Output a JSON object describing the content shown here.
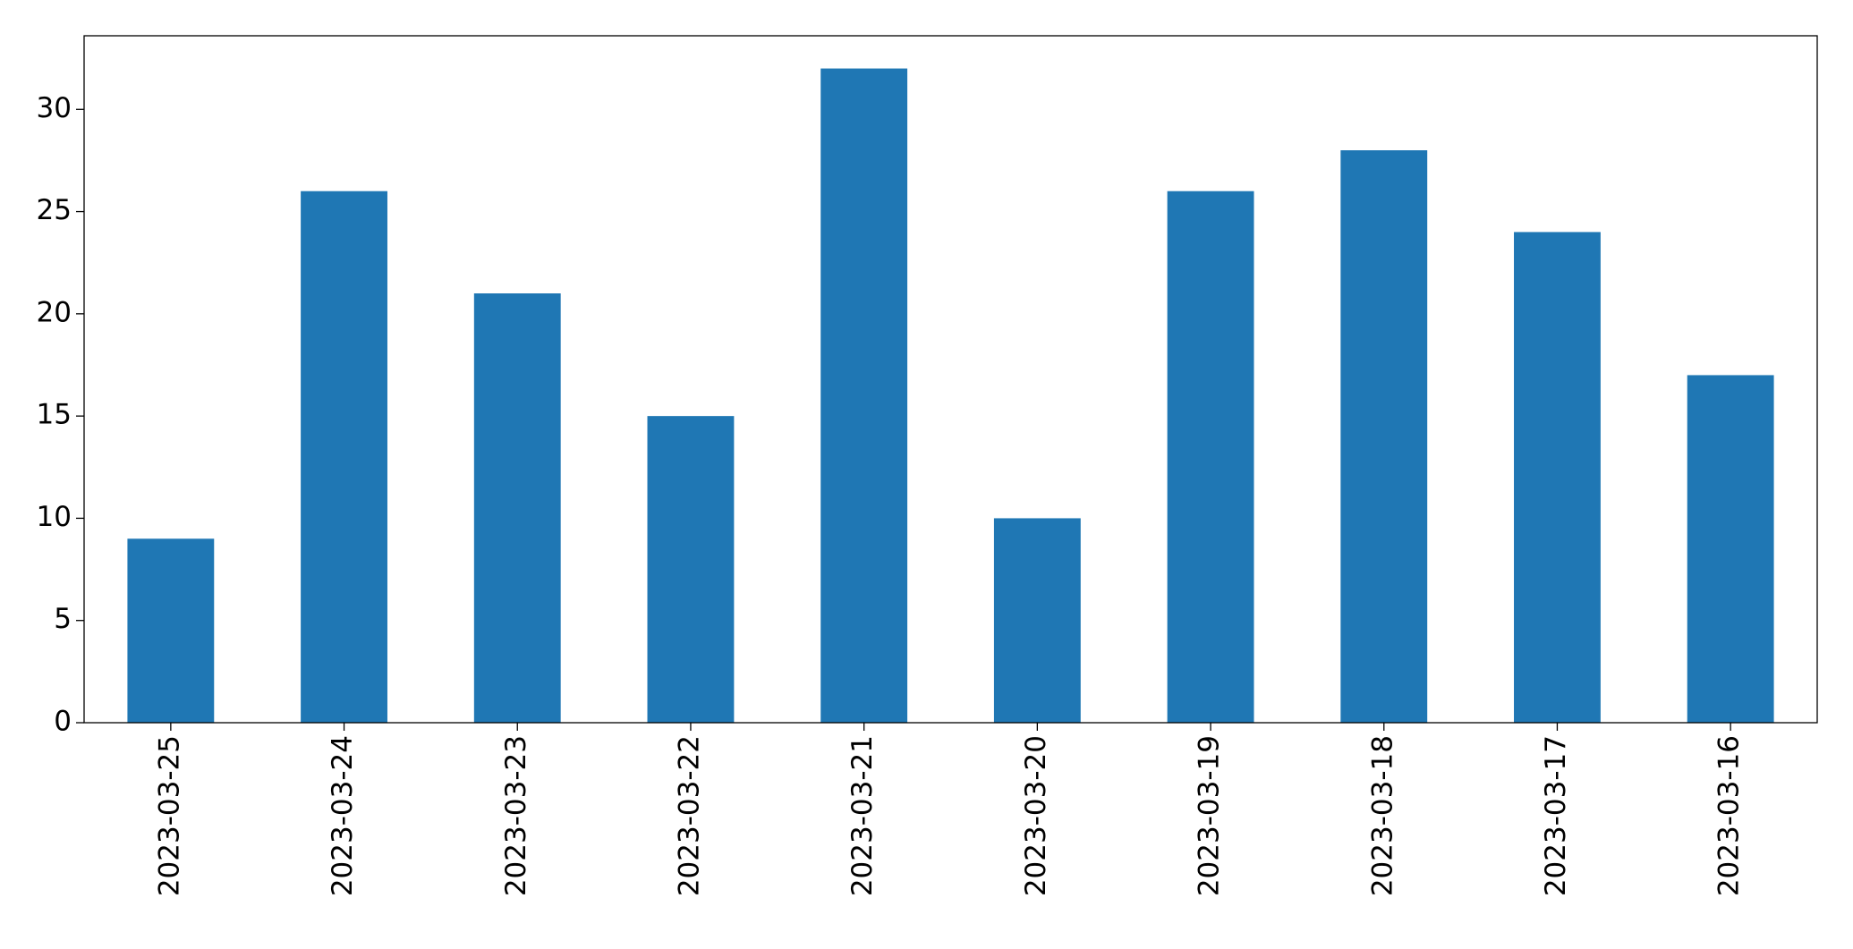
{
  "chart_data": {
    "type": "bar",
    "categories": [
      "2023-03-25",
      "2023-03-24",
      "2023-03-23",
      "2023-03-22",
      "2023-03-21",
      "2023-03-20",
      "2023-03-19",
      "2023-03-18",
      "2023-03-17",
      "2023-03-16"
    ],
    "values": [
      9,
      26,
      21,
      15,
      32,
      10,
      26,
      28,
      24,
      17
    ],
    "color": "#1f77b4",
    "ylim": [
      0,
      33.6
    ],
    "yticks": [
      0,
      5,
      10,
      15,
      20,
      25,
      30
    ],
    "grid": false
  }
}
